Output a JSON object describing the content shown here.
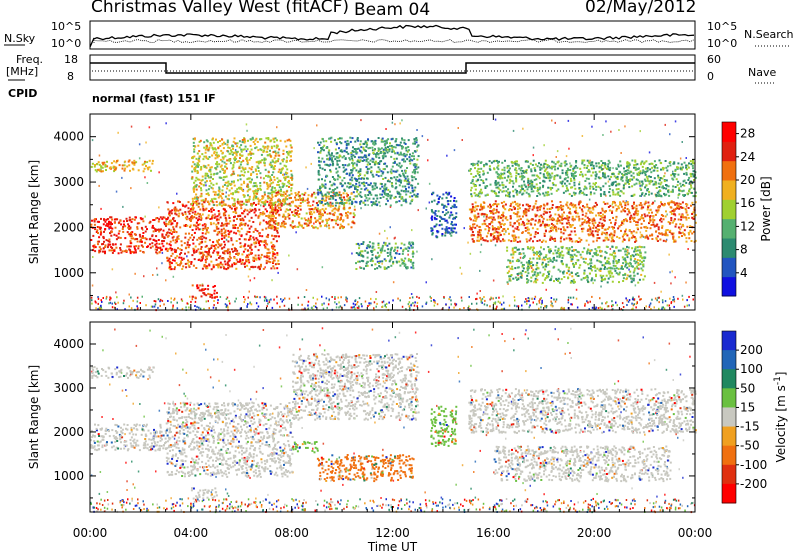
{
  "header": {
    "station": "Christmas Valley West (fitACF)",
    "beam": "Beam 04",
    "date": "02/May/2012"
  },
  "nsky": {
    "label": "N.Sky",
    "tick_top": "10^5",
    "tick_bottom": "10^0"
  },
  "nsearch": {
    "label": "N.Search",
    "tick_top": "10^5",
    "tick_bottom": "10^0"
  },
  "freq": {
    "label_line1": "Freq.",
    "label_line2": "[MHz]",
    "tick_top": "18",
    "tick_bottom": "8"
  },
  "nave": {
    "label": "Nave",
    "tick_top": "60",
    "tick_bottom": "0"
  },
  "cpid": {
    "label": "CPID",
    "mode": "normal (fast) 151 IF"
  },
  "chart_data": [
    {
      "type": "heatmap",
      "name": "power",
      "xlabel": "Time UT",
      "ylabel": "Slant Range [km]",
      "x_ticks": [
        "00:00",
        "04:00",
        "08:00",
        "12:00",
        "16:00",
        "20:00",
        "00:00"
      ],
      "xlim_hours": [
        0,
        24
      ],
      "y_ticks": [
        1000,
        2000,
        3000,
        4000
      ],
      "ylim": [
        180,
        4500
      ],
      "colorbar": {
        "label": "Power [dB]",
        "ticks": [
          4,
          8,
          12,
          16,
          20,
          24,
          28
        ],
        "range": [
          0,
          30
        ],
        "colors": [
          "#1010e0",
          "#2255c0",
          "#2c8a70",
          "#55b070",
          "#a0d030",
          "#f0b020",
          "#f07010",
          "#e02010",
          "#ff0000"
        ]
      },
      "regions": [
        {
          "t0": 0.0,
          "t1": 3.0,
          "r0": 1450,
          "r1": 2250,
          "level": 0.88
        },
        {
          "t0": 0.0,
          "t1": 2.5,
          "r0": 3250,
          "r1": 3500,
          "level": 0.62
        },
        {
          "t0": 3.0,
          "t1": 7.5,
          "r0": 1100,
          "r1": 2600,
          "level": 0.82
        },
        {
          "t0": 4.0,
          "t1": 8.0,
          "r0": 2500,
          "r1": 4000,
          "level": 0.55
        },
        {
          "t0": 7.0,
          "t1": 10.5,
          "r0": 2000,
          "r1": 2800,
          "level": 0.7
        },
        {
          "t0": 9.0,
          "t1": 13.0,
          "r0": 2500,
          "r1": 4000,
          "level": 0.3
        },
        {
          "t0": 10.5,
          "t1": 12.8,
          "r0": 1100,
          "r1": 1700,
          "level": 0.33
        },
        {
          "t0": 4.0,
          "t1": 5.0,
          "r0": 450,
          "r1": 750,
          "level": 0.9
        },
        {
          "t0": 13.5,
          "t1": 14.5,
          "r0": 1800,
          "r1": 2800,
          "level": 0.15
        },
        {
          "t0": 15.0,
          "t1": 24.0,
          "r0": 1700,
          "r1": 2600,
          "level": 0.75
        },
        {
          "t0": 15.0,
          "t1": 24.0,
          "r0": 2700,
          "r1": 3500,
          "level": 0.38
        },
        {
          "t0": 16.5,
          "t1": 22.0,
          "r0": 800,
          "r1": 1600,
          "level": 0.42
        }
      ]
    },
    {
      "type": "heatmap",
      "name": "velocity",
      "xlabel": "Time UT",
      "ylabel": "Slant Range [km]",
      "x_ticks": [
        "00:00",
        "04:00",
        "08:00",
        "12:00",
        "16:00",
        "20:00",
        "00:00"
      ],
      "xlim_hours": [
        0,
        24
      ],
      "y_ticks": [
        1000,
        2000,
        3000,
        4000
      ],
      "ylim": [
        180,
        4500
      ],
      "colorbar": {
        "label_main": "Velocity [m s",
        "label_sup": "-1",
        "label_end": "]",
        "ticks": [
          "200",
          "100",
          "50",
          "15",
          "-15",
          "-50",
          "-100",
          "-200"
        ],
        "colors": [
          "#1a2ad0",
          "#2266b8",
          "#208860",
          "#6ac040",
          "#c8c8c0",
          "#f0a020",
          "#f07010",
          "#e03010",
          "#ff0000"
        ]
      },
      "regions": [
        {
          "t0": 0.0,
          "t1": 3.0,
          "r0": 1600,
          "r1": 2200,
          "vel": "ground"
        },
        {
          "t0": 0.0,
          "t1": 2.5,
          "r0": 3250,
          "r1": 3500,
          "vel": "ground"
        },
        {
          "t0": 3.0,
          "t1": 8.0,
          "r0": 1000,
          "r1": 2700,
          "vel": "ground"
        },
        {
          "t0": 8.0,
          "t1": 13.0,
          "r0": 2300,
          "r1": 3800,
          "vel": "ground"
        },
        {
          "t0": 8.0,
          "t1": 9.0,
          "r0": 1550,
          "r1": 1800,
          "vel": "green"
        },
        {
          "t0": 9.0,
          "t1": 12.8,
          "r0": 900,
          "r1": 1500,
          "vel": "orange"
        },
        {
          "t0": 4.0,
          "t1": 5.0,
          "r0": 500,
          "r1": 750,
          "vel": "ground"
        },
        {
          "t0": 13.5,
          "t1": 14.5,
          "r0": 1700,
          "r1": 2600,
          "vel": "green"
        },
        {
          "t0": 15.0,
          "t1": 24.0,
          "r0": 2000,
          "r1": 3000,
          "vel": "ground"
        },
        {
          "t0": 16.0,
          "t1": 23.0,
          "r0": 900,
          "r1": 1700,
          "vel": "ground"
        }
      ]
    }
  ]
}
